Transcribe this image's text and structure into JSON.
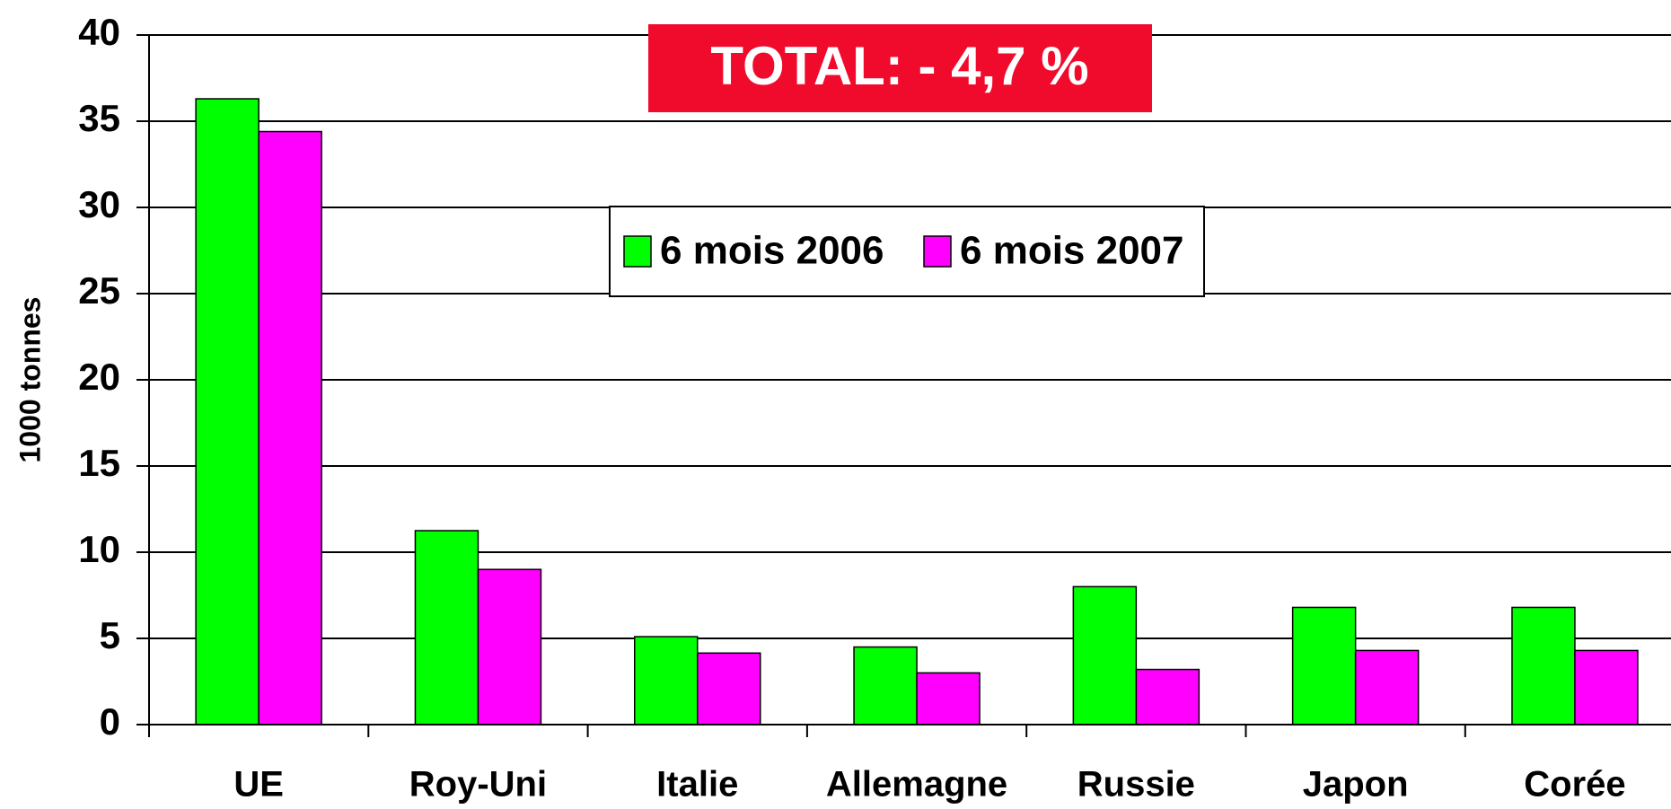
{
  "chart_data": {
    "type": "bar",
    "annotation": "TOTAL: - 4,7 %",
    "y_label": "1000 tonnes",
    "categories": [
      "UE",
      "Roy-Uni",
      "Italie",
      "Allemagne",
      "Russie",
      "Japon",
      "Corée"
    ],
    "series": [
      {
        "name": "6 mois 2006",
        "color": "#00ff00",
        "values": [
          36.3,
          11.25,
          5.1,
          4.5,
          8.0,
          6.8,
          6.8
        ]
      },
      {
        "name": "6 mois 2007",
        "color": "#ff00ff",
        "values": [
          34.4,
          9.0,
          4.15,
          3.0,
          3.2,
          4.3,
          4.3
        ]
      }
    ],
    "ylim": [
      0,
      40
    ],
    "yticks": [
      0,
      5,
      10,
      15,
      20,
      25,
      30,
      35,
      40
    ],
    "grid": true,
    "legend": "top-center"
  }
}
